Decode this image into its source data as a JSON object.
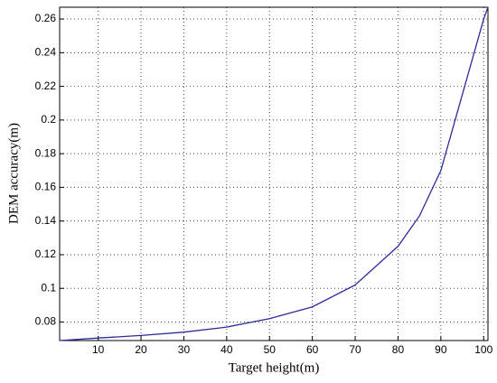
{
  "chart_data": {
    "type": "line",
    "xlabel": "Target height(m)",
    "ylabel": "DEM accuracy(m)",
    "x": [
      1,
      10,
      20,
      30,
      40,
      50,
      60,
      70,
      80,
      85,
      90,
      95,
      100,
      101
    ],
    "series": [
      {
        "color": "#2b2b9a",
        "values": [
          0.069,
          0.0705,
          0.072,
          0.074,
          0.077,
          0.082,
          0.089,
          0.102,
          0.125,
          0.143,
          0.17,
          0.215,
          0.26,
          0.267
        ]
      }
    ],
    "xlim": [
      1,
      101
    ],
    "xticks": [
      10,
      20,
      30,
      40,
      50,
      60,
      70,
      80,
      90,
      100
    ],
    "ylim": [
      0.069,
      0.267
    ],
    "yticks": [
      0.08,
      0.1,
      0.12,
      0.14,
      0.16,
      0.18,
      0.2,
      0.22,
      0.24,
      0.26
    ],
    "grid": true
  }
}
